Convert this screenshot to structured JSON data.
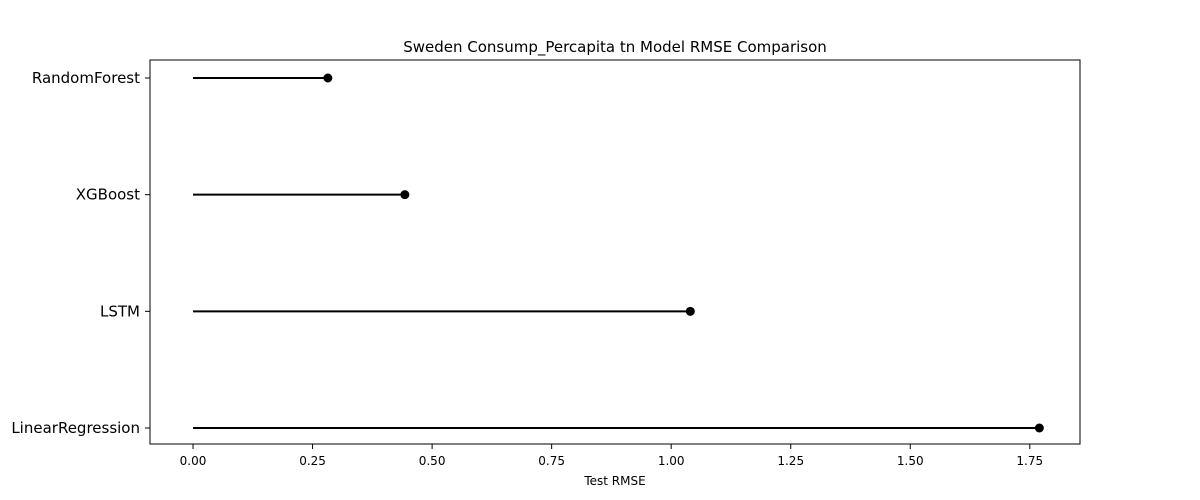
{
  "chart_data": {
    "type": "lollipop",
    "orientation": "horizontal",
    "title": "Sweden Consump_Percapita tn Model RMSE Comparison",
    "xlabel": "Test RMSE",
    "ylabel": "",
    "categories": [
      "RandomForest",
      "XGBoost",
      "LSTM",
      "LinearRegression"
    ],
    "values": [
      0.282,
      0.443,
      1.04,
      1.77
    ],
    "xlim": [
      -0.09,
      1.855
    ],
    "xticks": [
      0.0,
      0.25,
      0.5,
      0.75,
      1.0,
      1.25,
      1.5,
      1.75
    ],
    "xtick_labels": [
      "0.00",
      "0.25",
      "0.50",
      "0.75",
      "1.00",
      "1.25",
      "1.50",
      "1.75"
    ],
    "grid": false,
    "color": "#000000"
  }
}
